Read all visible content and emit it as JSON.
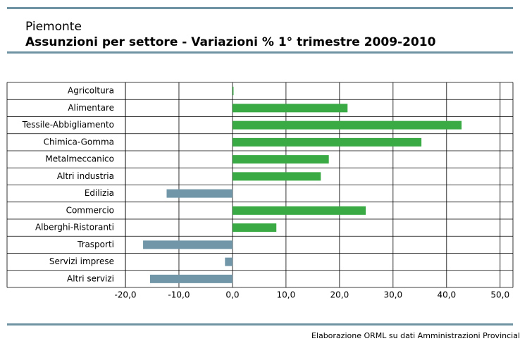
{
  "chart_data": {
    "type": "hbar",
    "subtitle": "Piemonte",
    "title": "Assunzioni per settore - Variazioni % 1° trimestre 2009-2010",
    "categories": [
      "Agricoltura",
      "Alimentare",
      "Tessile-Abbigliamento",
      "Chimica-Gomma",
      "Metalmeccanico",
      "Altri industria",
      "Edilizia",
      "Commercio",
      "Alberghi-Ristoranti",
      "Trasporti",
      "Servizi imprese",
      "Altri servizi"
    ],
    "values": [
      0.2,
      21.5,
      42.8,
      35.3,
      18,
      16.5,
      -12.3,
      24.9,
      8.2,
      -16.7,
      -1.4,
      -15.4
    ],
    "positive_color": "#3aaa45",
    "negative_color": "#7096a8",
    "xlim": [
      -20,
      52.4
    ],
    "xticks": [
      {
        "value": -20,
        "label": "-20,0"
      },
      {
        "value": -10,
        "label": "-10,0"
      },
      {
        "value": 0,
        "label": "0,0"
      },
      {
        "value": 10,
        "label": "10,0"
      },
      {
        "value": 20,
        "label": "20,0"
      },
      {
        "value": 30,
        "label": "30,0"
      },
      {
        "value": 40,
        "label": "40,0"
      },
      {
        "value": 50,
        "label": "50,0"
      }
    ],
    "grid": true,
    "footer": "Elaborazione ORML su dati Amministrazioni Provincial"
  }
}
